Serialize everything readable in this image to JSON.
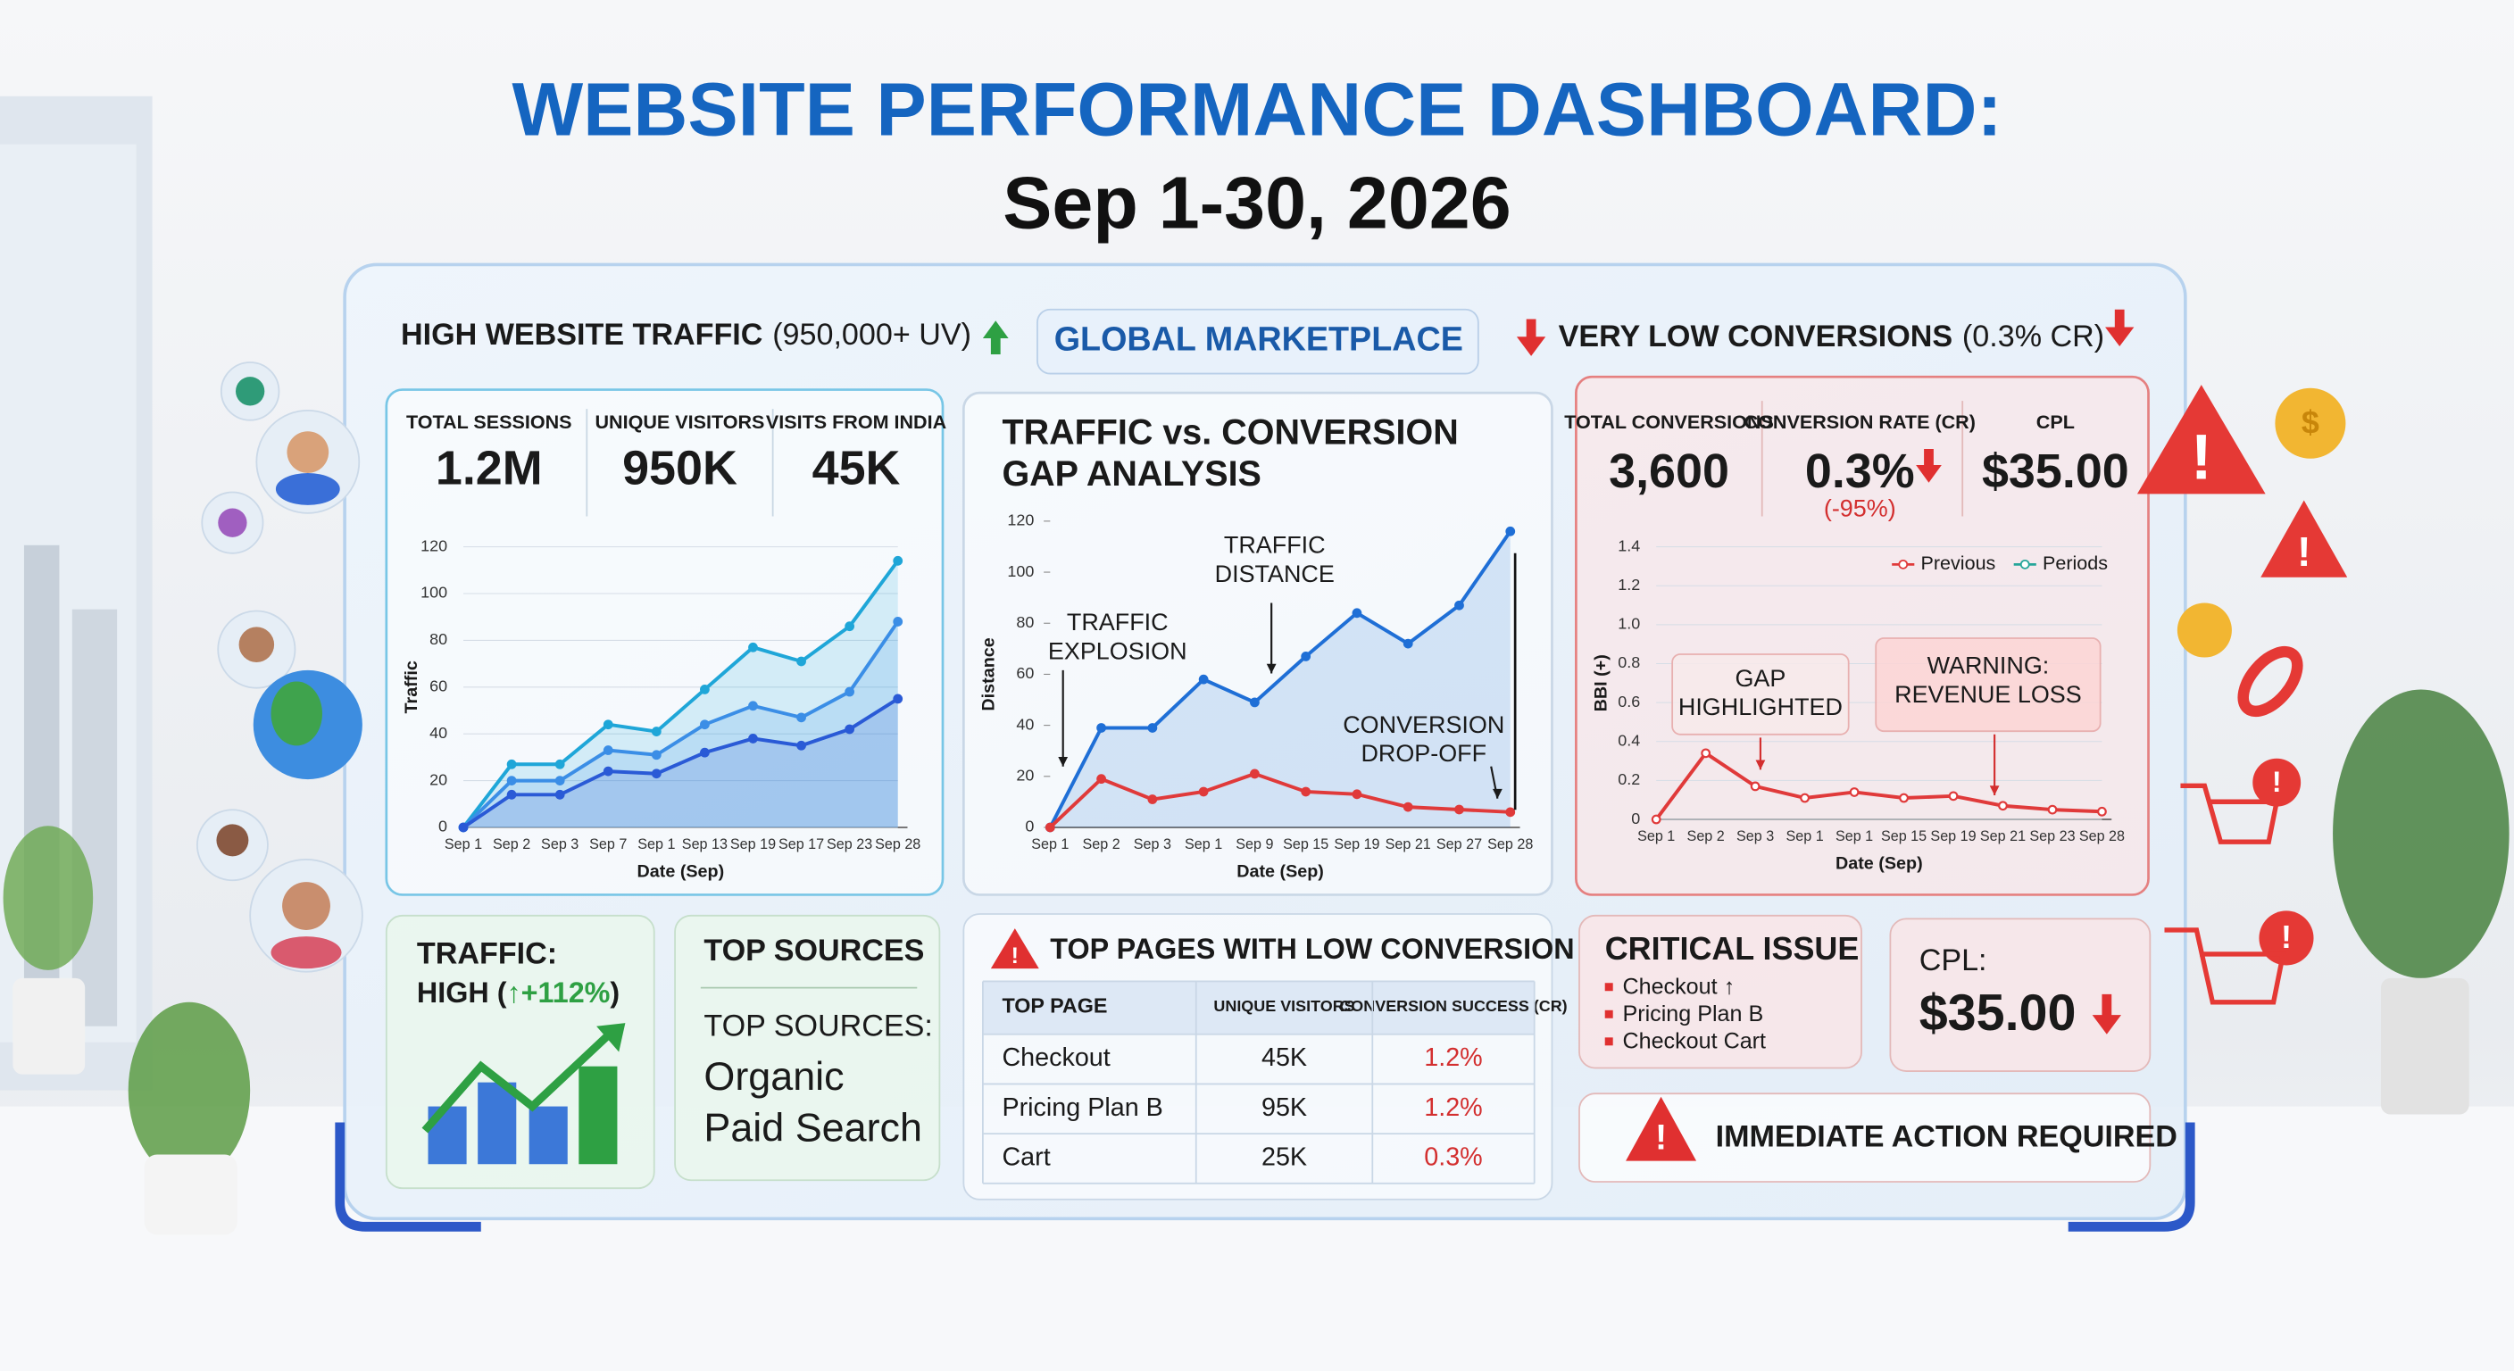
{
  "header": {
    "title": "WEBSITE PERFORMANCE DASHBOARD:",
    "subtitle": "Sep 1-30, 2026"
  },
  "banner": {
    "left": "HIGH WEBSITE TRAFFIC",
    "left_note": "(950,000+ UV)",
    "center": "GLOBAL MARKETPLACE",
    "right": "VERY LOW CONVERSIONS",
    "right_note": "(0.3% CR)"
  },
  "traffic_kpis": [
    {
      "label": "TOTAL SESSIONS",
      "value": "1.2M"
    },
    {
      "label": "UNIQUE VISITORS",
      "value": "950K"
    },
    {
      "label": "VISITS FROM INDIA",
      "value": "45K"
    }
  ],
  "conversion_kpis": [
    {
      "label": "TOTAL CONVERSIONS",
      "value": "3,600"
    },
    {
      "label": "CONVERSION RATE (CR)",
      "value": "0.3%",
      "change": "(-95%)"
    },
    {
      "label": "CPL",
      "value": "$35.00"
    }
  ],
  "chart_data": [
    {
      "type": "line",
      "xlabel": "Date (Sep)",
      "ylabel": "Traffic",
      "categories": [
        "Sep 1",
        "Sep 2",
        "Sep 3",
        "Sep 7",
        "Sep 1",
        "Sep 13",
        "Sep 19",
        "Sep 17",
        "Sep 23",
        "Sep 28"
      ],
      "ylim": [
        0,
        120
      ],
      "yticks": [
        0,
        20,
        40,
        60,
        80,
        100,
        120
      ],
      "grid": true,
      "series": [
        {
          "color": "#1fa6d8",
          "fill": true,
          "values": [
            0,
            27,
            27,
            44,
            41,
            59,
            77,
            71,
            86,
            114
          ]
        },
        {
          "color": "#3b8ee6",
          "fill": true,
          "values": [
            0,
            20,
            20,
            33,
            31,
            44,
            52,
            47,
            58,
            88
          ]
        },
        {
          "color": "#2a5ad6",
          "fill": true,
          "values": [
            0,
            14,
            14,
            24,
            23,
            32,
            38,
            35,
            42,
            55
          ]
        }
      ]
    },
    {
      "type": "line",
      "title": [
        "TRAFFIC vs. CONVERSION",
        "GAP ANALYSIS"
      ],
      "xlabel": "Date (Sep)",
      "ylabel": "Distance",
      "categories": [
        "Sep 1",
        "Sep 2",
        "Sep 3",
        "Sep 1",
        "Sep 9",
        "Sep 15",
        "Sep 19",
        "Sep 21",
        "Sep 27",
        "Sep 28"
      ],
      "ylim": [
        0,
        120
      ],
      "yticks": [
        0,
        20,
        40,
        60,
        80,
        100,
        120
      ],
      "grid": false,
      "annotations": [
        [
          "TRAFFIC",
          "EXPLOSION"
        ],
        [
          "TRAFFIC",
          "DISTANCE"
        ],
        [
          "CONVERSION",
          "DROP-OFF"
        ]
      ],
      "series": [
        {
          "color": "#1f6fd6",
          "fill": true,
          "values": [
            0,
            39,
            39,
            58,
            49,
            67,
            84,
            72,
            87,
            116
          ]
        },
        {
          "color": "#e03a3a",
          "fill": false,
          "values": [
            0,
            19,
            11,
            14,
            21,
            14,
            13,
            8,
            7,
            6
          ]
        }
      ]
    },
    {
      "type": "line",
      "xlabel": "Date (Sep)",
      "ylabel": "BBI (+)",
      "categories": [
        "Sep 1",
        "Sep 2",
        "Sep 3",
        "Sep 1",
        "Sep 1",
        "Sep 15",
        "Sep 19",
        "Sep 21",
        "Sep 23",
        "Sep 28"
      ],
      "ylim": [
        0,
        1.4
      ],
      "yticks": [
        0,
        0.2,
        0.4,
        0.6,
        0.8,
        {
          "value": 1,
          "label": "1.0"
        },
        1.2,
        1.4
      ],
      "grid": true,
      "annotations": [
        [
          "GAP",
          "HIGHLIGHTED"
        ],
        [
          "WARNING:",
          "REVENUE LOSS"
        ]
      ],
      "series": [
        {
          "name": "Previous",
          "color": "#e03a3a",
          "fill": false,
          "values": [
            0,
            0.34,
            0.17,
            0.11,
            0.14,
            0.11,
            0.12,
            0.07,
            0.05,
            0.04
          ]
        },
        {
          "name": "Periods",
          "color": "#26a69a",
          "fill": false,
          "values": [
            null,
            null,
            null,
            null,
            null,
            null,
            null,
            null,
            null,
            null
          ]
        }
      ]
    }
  ],
  "traffic_card": {
    "title": "TRAFFIC:",
    "status": "HIGH (",
    "change": "↑+112%",
    "close": ")"
  },
  "sources_card": {
    "title": "TOP SOURCES",
    "subtitle": "TOP SOURCES:",
    "items": [
      "Organic",
      "Paid Search"
    ]
  },
  "pages_table": {
    "title": "TOP PAGES WITH LOW CONVERSION",
    "columns": [
      "TOP PAGE",
      "UNIQUE VISITORS",
      "CONVERSION SUCCESS (CR)"
    ],
    "rows": [
      [
        "Checkout",
        "45K",
        "1.2%"
      ],
      [
        "Pricing Plan B",
        "95K",
        "1.2%"
      ],
      [
        "Cart",
        "25K",
        "0.3%"
      ]
    ]
  },
  "critical_card": {
    "title": "CRITICAL ISSUE",
    "items": [
      "Checkout ↑",
      "Pricing Plan B",
      "Checkout Cart"
    ]
  },
  "cpl_card": {
    "label": "CPL:",
    "value": "$35.00"
  },
  "action": {
    "text": "IMMEDIATE ACTION REQUIRED"
  }
}
